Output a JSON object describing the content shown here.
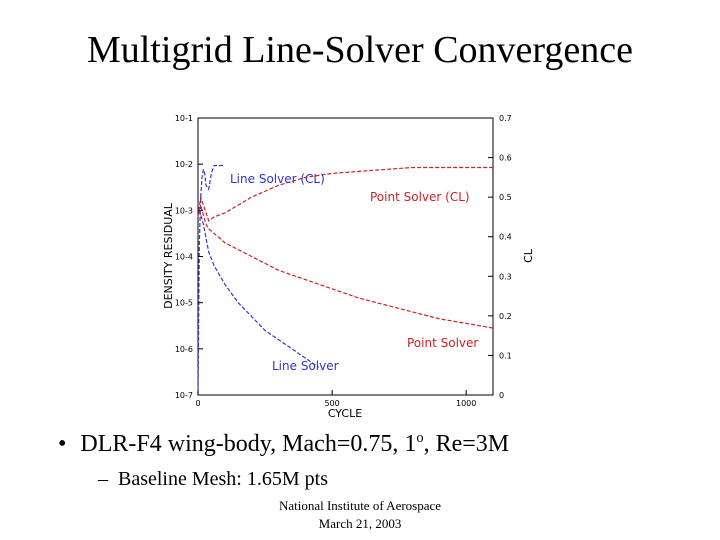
{
  "slide": {
    "title": "Multigrid Line-Solver Convergence",
    "bullet_1": {
      "marker": "•",
      "text_before": "DLR-F4 wing-body, Mach=0.75, 1",
      "superscript": "o",
      "text_after": ", Re=3M"
    },
    "bullet_2": {
      "marker": "–",
      "text": "Baseline Mesh: 1.65M pts"
    },
    "footer": {
      "line_1": "National Institute of Aerospace",
      "line_2": "March 21, 2003"
    }
  },
  "colors": {
    "line_solver": "#3333cc",
    "point_solver": "#cc2222"
  },
  "chart_data": {
    "type": "line",
    "xlabel": "CYCLE",
    "ylabel_left": "DENSITY RESIDUAL",
    "ylabel_right": "CL",
    "xlim": [
      0,
      1100
    ],
    "x_ticks": [
      0,
      500,
      1000
    ],
    "x_tick_labels": [
      "0",
      "500",
      "1000"
    ],
    "ylim_left_log10": [
      -7,
      -1
    ],
    "y_left_ticks_log10": [
      -1,
      -2,
      -3,
      -4,
      -5,
      -6,
      -7
    ],
    "y_left_tick_labels": [
      "10-1",
      "10-2",
      "10-3",
      "10-4",
      "10-5",
      "10-6",
      "10-7"
    ],
    "ylim_right": [
      0,
      0.7
    ],
    "y_right_ticks": [
      0.7,
      0.6,
      0.5,
      0.4,
      0.3,
      0.2,
      0.1,
      0
    ],
    "y_right_tick_labels": [
      "0.7",
      "0.6",
      "0.5",
      "0.4",
      "0.3",
      "0.2",
      "0.1",
      "0"
    ],
    "grid": false,
    "annotations": {
      "line_solver_cl": "Line Solver (CL)",
      "point_solver_cl": "Point Solver (CL)",
      "point_solver": "Point Solver",
      "line_solver": "Line Solver"
    },
    "series": [
      {
        "axis": "right",
        "color": "#3333cc",
        "x": [
          0,
          5,
          10,
          15,
          20,
          25,
          30,
          40,
          50,
          60,
          70,
          80,
          100
        ],
        "y": [
          0.0,
          0.38,
          0.5,
          0.55,
          0.57,
          0.56,
          0.53,
          0.52,
          0.56,
          0.58,
          0.58,
          0.58,
          0.58
        ]
      },
      {
        "axis": "right",
        "color": "#cc2222",
        "x": [
          0,
          10,
          20,
          40,
          60,
          100,
          150,
          200,
          300,
          400,
          500,
          600,
          700,
          800,
          900,
          1000,
          1100
        ],
        "y": [
          0.45,
          0.5,
          0.48,
          0.44,
          0.45,
          0.46,
          0.48,
          0.5,
          0.53,
          0.55,
          0.56,
          0.565,
          0.57,
          0.575,
          0.575,
          0.575,
          0.575
        ]
      },
      {
        "axis": "left",
        "color": "#cc2222",
        "x": [
          0,
          10,
          20,
          30,
          40,
          60,
          80,
          100,
          150,
          200,
          300,
          400,
          500,
          600,
          700,
          800,
          900,
          1000,
          1100
        ],
        "y_log10": [
          -3.0,
          -2.9,
          -3.1,
          -3.3,
          -3.4,
          -3.5,
          -3.6,
          -3.7,
          -3.85,
          -4.0,
          -4.3,
          -4.5,
          -4.7,
          -4.9,
          -5.05,
          -5.2,
          -5.35,
          -5.45,
          -5.55
        ]
      },
      {
        "axis": "left",
        "color": "#3333cc",
        "x": [
          0,
          10,
          20,
          30,
          40,
          60,
          80,
          100,
          150,
          200,
          250,
          300,
          350,
          400,
          450
        ],
        "y_log10": [
          -3.0,
          -3.1,
          -3.3,
          -3.6,
          -3.9,
          -4.2,
          -4.4,
          -4.6,
          -5.0,
          -5.3,
          -5.6,
          -5.8,
          -6.0,
          -6.2,
          -6.4
        ]
      }
    ]
  }
}
